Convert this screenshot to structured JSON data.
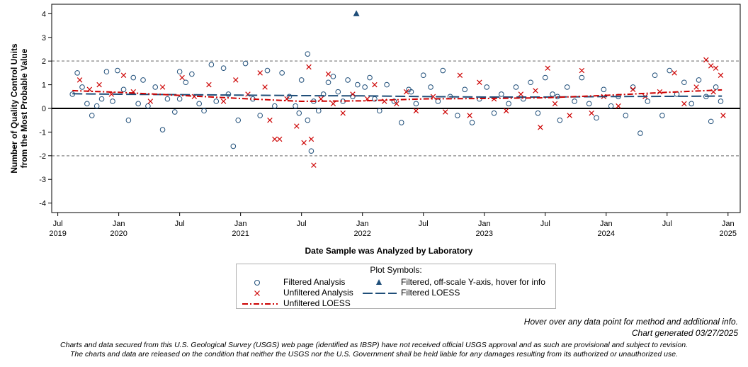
{
  "chart_data": {
    "type": "scatter",
    "title": "",
    "xlabel": "Date Sample was Analyzed by Laboratory",
    "ylabel_lines": [
      "Number of Quality Control Units",
      "from the Most Probable Value"
    ],
    "xlim": [
      2019.45,
      2025.1
    ],
    "ylim": [
      -4.4,
      4.4
    ],
    "y_ticks": [
      -4,
      -3,
      -2,
      -1,
      0,
      1,
      2,
      3,
      4
    ],
    "x_ticks": [
      {
        "value": 2019.5,
        "month": "Jul",
        "year": "2019"
      },
      {
        "value": 2020.0,
        "month": "Jan",
        "year": "2020"
      },
      {
        "value": 2020.5,
        "month": "Jul",
        "year": ""
      },
      {
        "value": 2021.0,
        "month": "Jan",
        "year": "2021"
      },
      {
        "value": 2021.5,
        "month": "Jul",
        "year": ""
      },
      {
        "value": 2022.0,
        "month": "Jan",
        "year": "2022"
      },
      {
        "value": 2022.5,
        "month": "Jul",
        "year": ""
      },
      {
        "value": 2023.0,
        "month": "Jan",
        "year": "2023"
      },
      {
        "value": 2023.5,
        "month": "Jul",
        "year": ""
      },
      {
        "value": 2024.0,
        "month": "Jan",
        "year": "2024"
      },
      {
        "value": 2024.5,
        "month": "Jul",
        "year": ""
      },
      {
        "value": 2025.0,
        "month": "Jan",
        "year": "2025"
      }
    ],
    "reference_lines": [
      {
        "y": 0,
        "style": "solid"
      },
      {
        "y": 2,
        "style": "dashed"
      },
      {
        "y": -2,
        "style": "dashed"
      }
    ],
    "series": [
      {
        "name": "Filtered Analysis",
        "marker": "circle",
        "color": "#1f4e79",
        "points": [
          [
            2019.62,
            0.6
          ],
          [
            2019.66,
            1.5
          ],
          [
            2019.7,
            0.9
          ],
          [
            2019.74,
            0.2
          ],
          [
            2019.78,
            -0.3
          ],
          [
            2019.82,
            0.1
          ],
          [
            2019.86,
            0.4
          ],
          [
            2019.9,
            1.55
          ],
          [
            2019.95,
            0.3
          ],
          [
            2019.99,
            1.6
          ],
          [
            2020.04,
            0.8
          ],
          [
            2020.08,
            -0.5
          ],
          [
            2020.12,
            1.3
          ],
          [
            2020.16,
            0.2
          ],
          [
            2020.2,
            1.2
          ],
          [
            2020.24,
            0.1
          ],
          [
            2020.3,
            0.9
          ],
          [
            2020.36,
            -0.9
          ],
          [
            2020.4,
            0.4
          ],
          [
            2020.46,
            -0.15
          ],
          [
            2020.5,
            1.55
          ],
          [
            2020.55,
            1.1
          ],
          [
            2020.6,
            1.45
          ],
          [
            2020.66,
            0.2
          ],
          [
            2020.7,
            -0.1
          ],
          [
            2020.76,
            1.85
          ],
          [
            2020.8,
            0.3
          ],
          [
            2020.86,
            1.7
          ],
          [
            2020.9,
            0.6
          ],
          [
            2020.94,
            -1.6
          ],
          [
            2020.98,
            -0.5
          ],
          [
            2021.04,
            1.9
          ],
          [
            2021.1,
            0.4
          ],
          [
            2021.16,
            -0.3
          ],
          [
            2021.22,
            1.6
          ],
          [
            2021.28,
            0.1
          ],
          [
            2021.34,
            1.5
          ],
          [
            2021.4,
            0.5
          ],
          [
            2021.45,
            0.1
          ],
          [
            2021.5,
            1.2
          ],
          [
            2021.55,
            -0.5
          ],
          [
            2021.6,
            0.3
          ],
          [
            2021.64,
            -0.1
          ],
          [
            2021.68,
            0.6
          ],
          [
            2021.72,
            1.1
          ],
          [
            2021.76,
            1.35
          ],
          [
            2021.8,
            0.7
          ],
          [
            2021.84,
            0.3
          ],
          [
            2021.88,
            1.2
          ],
          [
            2021.92,
            0.5
          ],
          [
            2021.96,
            1.0
          ],
          [
            2022.02,
            0.9
          ],
          [
            2022.06,
            1.3
          ],
          [
            2022.1,
            0.4
          ],
          [
            2022.14,
            -0.1
          ],
          [
            2022.2,
            1.0
          ],
          [
            2022.26,
            0.3
          ],
          [
            2022.32,
            -0.6
          ],
          [
            2022.38,
            0.8
          ],
          [
            2022.44,
            0.2
          ],
          [
            2022.5,
            1.4
          ],
          [
            2022.56,
            0.9
          ],
          [
            2022.62,
            0.3
          ],
          [
            2022.66,
            1.6
          ],
          [
            2022.72,
            0.5
          ],
          [
            2022.78,
            -0.3
          ],
          [
            2022.84,
            0.8
          ],
          [
            2022.9,
            -0.6
          ],
          [
            2022.96,
            0.4
          ],
          [
            2023.02,
            0.9
          ],
          [
            2023.08,
            -0.2
          ],
          [
            2023.14,
            0.6
          ],
          [
            2023.2,
            0.2
          ],
          [
            2023.26,
            0.9
          ],
          [
            2023.32,
            0.4
          ],
          [
            2023.38,
            1.1
          ],
          [
            2023.44,
            -0.2
          ],
          [
            2023.5,
            1.3
          ],
          [
            2023.56,
            0.6
          ],
          [
            2023.62,
            -0.5
          ],
          [
            2023.68,
            0.9
          ],
          [
            2023.74,
            0.3
          ],
          [
            2023.8,
            1.3
          ],
          [
            2023.86,
            0.2
          ],
          [
            2023.92,
            -0.4
          ],
          [
            2023.98,
            0.8
          ],
          [
            2024.04,
            0.1
          ],
          [
            2024.1,
            0.5
          ],
          [
            2024.16,
            -0.3
          ],
          [
            2024.22,
            0.9
          ],
          [
            2024.28,
            -1.05
          ],
          [
            2024.34,
            0.3
          ],
          [
            2024.4,
            1.4
          ],
          [
            2024.46,
            -0.3
          ],
          [
            2024.52,
            1.6
          ],
          [
            2024.58,
            0.6
          ],
          [
            2024.64,
            1.1
          ],
          [
            2024.7,
            0.2
          ],
          [
            2024.76,
            1.2
          ],
          [
            2024.82,
            0.5
          ],
          [
            2024.86,
            -0.55
          ],
          [
            2024.9,
            0.9
          ],
          [
            2024.94,
            0.3
          ],
          [
            2021.55,
            2.3
          ],
          [
            2021.48,
            -0.2
          ],
          [
            2021.58,
            -1.8
          ],
          [
            2020.5,
            0.4
          ],
          [
            2022.4,
            0.7
          ],
          [
            2023.6,
            0.5
          ]
        ]
      },
      {
        "name": "Unfiltered Analysis",
        "marker": "x",
        "color": "#cc0000",
        "points": [
          [
            2019.68,
            1.2
          ],
          [
            2019.76,
            0.8
          ],
          [
            2019.84,
            1.0
          ],
          [
            2019.94,
            0.6
          ],
          [
            2020.04,
            1.4
          ],
          [
            2020.12,
            0.7
          ],
          [
            2020.26,
            0.3
          ],
          [
            2020.36,
            0.9
          ],
          [
            2020.52,
            1.3
          ],
          [
            2020.62,
            0.5
          ],
          [
            2020.74,
            1.0
          ],
          [
            2020.86,
            0.3
          ],
          [
            2020.96,
            1.2
          ],
          [
            2021.06,
            0.6
          ],
          [
            2021.16,
            1.5
          ],
          [
            2021.2,
            0.9
          ],
          [
            2021.24,
            -0.5
          ],
          [
            2021.28,
            -1.3
          ],
          [
            2021.32,
            -1.3
          ],
          [
            2021.38,
            0.4
          ],
          [
            2021.46,
            -0.75
          ],
          [
            2021.52,
            -1.45
          ],
          [
            2021.56,
            1.75
          ],
          [
            2021.58,
            -1.3
          ],
          [
            2021.6,
            -2.4
          ],
          [
            2021.66,
            0.4
          ],
          [
            2021.72,
            1.45
          ],
          [
            2021.76,
            0.2
          ],
          [
            2021.84,
            -0.2
          ],
          [
            2021.92,
            0.6
          ],
          [
            2022.04,
            0.4
          ],
          [
            2022.1,
            1.0
          ],
          [
            2022.18,
            0.3
          ],
          [
            2022.28,
            0.2
          ],
          [
            2022.36,
            0.7
          ],
          [
            2022.44,
            -0.1
          ],
          [
            2022.58,
            0.5
          ],
          [
            2022.68,
            -0.15
          ],
          [
            2022.8,
            1.4
          ],
          [
            2022.88,
            -0.3
          ],
          [
            2022.96,
            1.1
          ],
          [
            2023.08,
            0.4
          ],
          [
            2023.18,
            -0.1
          ],
          [
            2023.3,
            0.6
          ],
          [
            2023.42,
            0.75
          ],
          [
            2023.46,
            -0.8
          ],
          [
            2023.52,
            1.7
          ],
          [
            2023.58,
            0.2
          ],
          [
            2023.7,
            -0.3
          ],
          [
            2023.8,
            1.6
          ],
          [
            2023.88,
            -0.2
          ],
          [
            2023.98,
            0.5
          ],
          [
            2024.1,
            0.1
          ],
          [
            2024.22,
            0.8
          ],
          [
            2024.32,
            0.5
          ],
          [
            2024.44,
            0.7
          ],
          [
            2024.56,
            1.5
          ],
          [
            2024.64,
            0.2
          ],
          [
            2024.74,
            0.9
          ],
          [
            2024.82,
            2.05
          ],
          [
            2024.86,
            1.8
          ],
          [
            2024.9,
            1.7
          ],
          [
            2024.94,
            1.4
          ],
          [
            2024.96,
            -0.3
          ],
          [
            2024.88,
            0.7
          ]
        ]
      },
      {
        "name": "Filtered, off-scale Y-axis, hover for info",
        "marker": "triangle",
        "color": "#1f4e79",
        "points": [
          [
            2021.95,
            4.0
          ]
        ]
      },
      {
        "name": "Filtered LOESS",
        "style": "long-dash",
        "color": "#1f4e79",
        "points": [
          [
            2019.62,
            0.62
          ],
          [
            2020.0,
            0.6
          ],
          [
            2020.5,
            0.58
          ],
          [
            2021.0,
            0.56
          ],
          [
            2021.5,
            0.54
          ],
          [
            2022.0,
            0.53
          ],
          [
            2022.5,
            0.5
          ],
          [
            2023.0,
            0.48
          ],
          [
            2023.5,
            0.48
          ],
          [
            2024.0,
            0.5
          ],
          [
            2024.5,
            0.51
          ],
          [
            2024.95,
            0.52
          ]
        ]
      },
      {
        "name": "Unfiltered LOESS",
        "style": "dash-dot",
        "color": "#cc0000",
        "points": [
          [
            2019.62,
            0.75
          ],
          [
            2020.0,
            0.68
          ],
          [
            2020.5,
            0.55
          ],
          [
            2021.0,
            0.42
          ],
          [
            2021.5,
            0.3
          ],
          [
            2022.0,
            0.32
          ],
          [
            2022.5,
            0.4
          ],
          [
            2023.0,
            0.42
          ],
          [
            2023.5,
            0.45
          ],
          [
            2024.0,
            0.55
          ],
          [
            2024.5,
            0.68
          ],
          [
            2024.95,
            0.78
          ]
        ]
      }
    ]
  },
  "legend": {
    "title": "Plot Symbols:",
    "filtered_analysis": "Filtered Analysis",
    "off_scale": "Filtered, off-scale Y-axis, hover for info",
    "unfiltered_analysis": "Unfiltered Analysis",
    "filtered_loess": "Filtered LOESS",
    "unfiltered_loess": "Unfiltered LOESS"
  },
  "notes": {
    "hover": "Hover over any data point for method and additional info.",
    "generated": "Chart generated 03/27/2025",
    "disclaimer_line1": "Charts and data secured from this U.S. Geological Survey (USGS) web page (identified as IBSP) have not received official USGS approval and as such are provisional and subject to revision.",
    "disclaimer_line2": "The charts and data are released on the condition that neither the USGS nor the U.S. Government shall be held liable for any damages resulting from its authorized or unauthorized use."
  },
  "colors": {
    "filtered": "#1f4e79",
    "unfiltered": "#cc0000",
    "reference": "#999999"
  }
}
